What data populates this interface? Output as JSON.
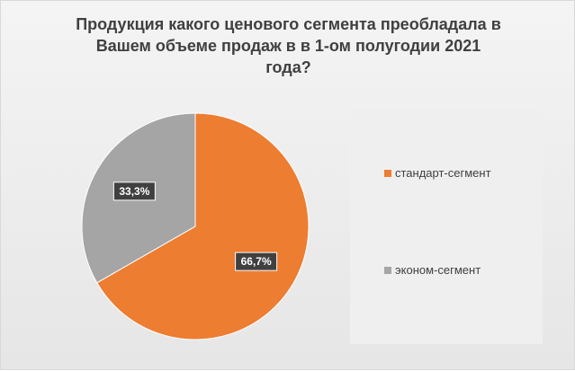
{
  "chart_data": {
    "type": "pie",
    "title": "Продукция какого ценового сегмента преобладала в\nВашем объеме продаж  в в 1-ом полугодии 2021\nгода?",
    "categories": [
      "стандарт-сегмент",
      "эконом-сегмент"
    ],
    "values": [
      66.7,
      33.3
    ],
    "data_labels": [
      "66,7%",
      "33,3%"
    ],
    "colors": [
      "#ed7d31",
      "#a5a5a5"
    ],
    "legend_position": "right"
  }
}
